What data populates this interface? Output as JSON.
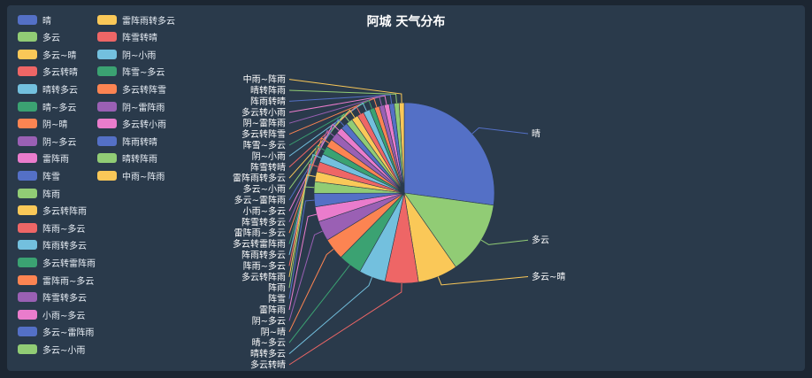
{
  "chart_data": {
    "type": "pie",
    "title": "阿城 天气分布",
    "legend_position": "left",
    "slices": [
      {
        "label": "晴",
        "value": 91,
        "color": "#5470c6"
      },
      {
        "label": "多云",
        "value": 44,
        "color": "#91cc75"
      },
      {
        "label": "多云~晴",
        "value": 24,
        "color": "#fac858"
      },
      {
        "label": "多云转晴",
        "value": 20,
        "color": "#ee6666"
      },
      {
        "label": "晴转多云",
        "value": 16,
        "color": "#73c0de"
      },
      {
        "label": "晴~多云",
        "value": 14,
        "color": "#3ba272"
      },
      {
        "label": "阴~晴",
        "value": 13,
        "color": "#fc8452"
      },
      {
        "label": "阴~多云",
        "value": 12,
        "color": "#9a60b4"
      },
      {
        "label": "雷阵雨",
        "value": 9,
        "color": "#ea7ccc"
      },
      {
        "label": "阵雪",
        "value": 8,
        "color": "#5470c6"
      },
      {
        "label": "阵雨",
        "value": 7,
        "color": "#91cc75"
      },
      {
        "label": "多云转阵雨",
        "value": 6,
        "color": "#fac858"
      },
      {
        "label": "阵雨~多云",
        "value": 6,
        "color": "#ee6666"
      },
      {
        "label": "阵雨转多云",
        "value": 5,
        "color": "#73c0de"
      },
      {
        "label": "多云转雷阵雨",
        "value": 5,
        "color": "#3ba272"
      },
      {
        "label": "雷阵雨~多云",
        "value": 5,
        "color": "#fc8452"
      },
      {
        "label": "阵雪转多云",
        "value": 5,
        "color": "#9a60b4"
      },
      {
        "label": "小雨~多云",
        "value": 4,
        "color": "#ea7ccc"
      },
      {
        "label": "多云~雷阵雨",
        "value": 4,
        "color": "#5470c6"
      },
      {
        "label": "多云~小雨",
        "value": 4,
        "color": "#91cc75"
      },
      {
        "label": "雷阵雨转多云",
        "value": 4,
        "color": "#fac858"
      },
      {
        "label": "阵雪转晴",
        "value": 4,
        "color": "#ee6666"
      },
      {
        "label": "阴~小雨",
        "value": 4,
        "color": "#73c0de"
      },
      {
        "label": "阵雪~多云",
        "value": 3,
        "color": "#3ba272"
      },
      {
        "label": "多云转阵雪",
        "value": 3,
        "color": "#fc8452"
      },
      {
        "label": "阴~雷阵雨",
        "value": 3,
        "color": "#9a60b4"
      },
      {
        "label": "多云转小雨",
        "value": 3,
        "color": "#ea7ccc"
      },
      {
        "label": "阵雨转晴",
        "value": 3,
        "color": "#5470c6"
      },
      {
        "label": "晴转阵雨",
        "value": 3,
        "color": "#91cc75"
      },
      {
        "label": "中雨~阵雨",
        "value": 3,
        "color": "#fac858"
      }
    ]
  }
}
